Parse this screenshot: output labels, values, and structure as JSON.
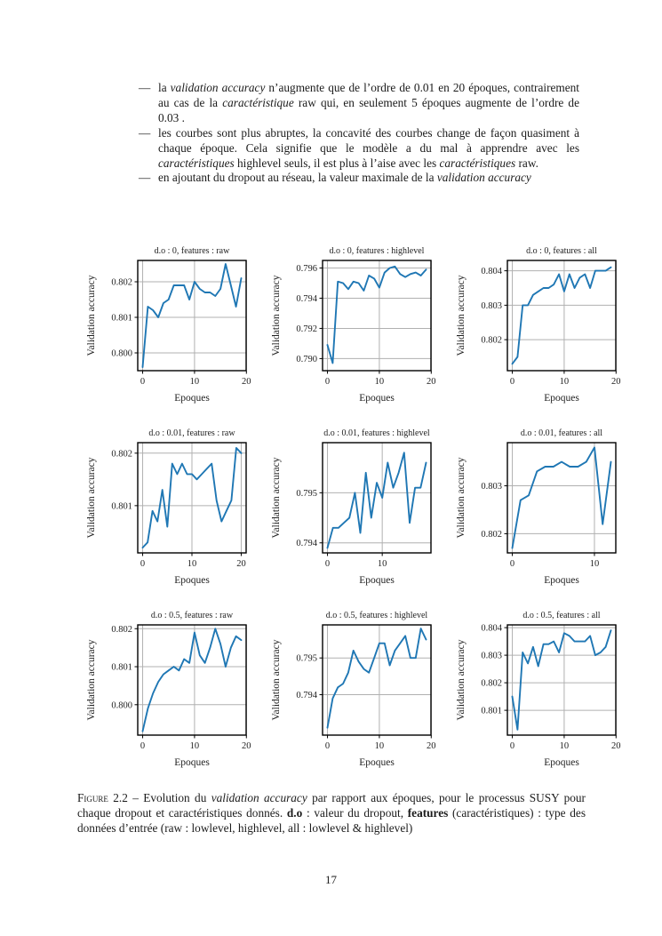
{
  "page_number": "17",
  "list_marker": "—",
  "bullets": [
    {
      "segments": [
        {
          "t": "la ",
          "s": ""
        },
        {
          "t": "validation accuracy",
          "s": "i"
        },
        {
          "t": " n’augmente que de l’ordre de 0.01 en 20 époques, contrairement au cas de la ",
          "s": ""
        },
        {
          "t": "caractéristique",
          "s": "i"
        },
        {
          "t": " raw qui, en seulement 5 époques augmente de l’ordre de 0.03 .",
          "s": ""
        }
      ]
    },
    {
      "segments": [
        {
          "t": "les courbes sont plus abruptes, la concavité des courbes change de façon quasiment à chaque époque. Cela signifie que le modèle a du mal à apprendre avec les ",
          "s": ""
        },
        {
          "t": "caractéristiques",
          "s": "i"
        },
        {
          "t": " highlevel seuls, il est plus à l’aise avec les ",
          "s": ""
        },
        {
          "t": "caractéristiques",
          "s": "i"
        },
        {
          "t": " raw.",
          "s": ""
        }
      ]
    },
    {
      "segments": [
        {
          "t": "en ajoutant du dropout au réseau, la valeur maximale de la ",
          "s": ""
        },
        {
          "t": "validation accuracy",
          "s": "i"
        }
      ]
    }
  ],
  "caption_segments": [
    {
      "t": "Figure",
      "s": "sc"
    },
    {
      "t": " 2.2 – Evolution du ",
      "s": ""
    },
    {
      "t": "validation accuracy",
      "s": "i"
    },
    {
      "t": " par rapport aux époques, pour le processus SUSY pour chaque dropout et caractéristiques donnés. ",
      "s": ""
    },
    {
      "t": "d.o",
      "s": "b"
    },
    {
      "t": " : valeur du dropout, ",
      "s": ""
    },
    {
      "t": "features",
      "s": "b"
    },
    {
      "t": " (caractéristiques) : type des données d’entrée (raw : lowlevel, highlevel, all : lowlevel & highlevel)",
      "s": ""
    }
  ],
  "chart_data": [
    {
      "type": "line",
      "title": "d.o : 0, features : raw",
      "xlabel": "Epoques",
      "ylabel": "Validation accuracy",
      "line_color": "#1f77b4",
      "grid": true,
      "x": [
        0,
        1,
        2,
        3,
        4,
        5,
        6,
        7,
        8,
        9,
        10,
        11,
        12,
        13,
        14,
        15,
        16,
        17,
        18,
        19
      ],
      "values": [
        0.7996,
        0.8013,
        0.8012,
        0.801,
        0.8014,
        0.8015,
        0.8019,
        0.8019,
        0.8019,
        0.8015,
        0.802,
        0.8018,
        0.8017,
        0.8017,
        0.8016,
        0.8018,
        0.8025,
        0.8019,
        0.8013,
        0.8021
      ],
      "xticks": [
        0,
        10,
        20
      ],
      "yticks": [
        0.8,
        0.801,
        0.802
      ],
      "xlim": [
        -0.95,
        19.95
      ],
      "ylim": [
        0.7995,
        0.8026
      ]
    },
    {
      "type": "line",
      "title": "d.o : 0, features : highlevel",
      "xlabel": "Epoques",
      "ylabel": "Validation accuracy",
      "line_color": "#1f77b4",
      "grid": true,
      "x": [
        0,
        1,
        2,
        3,
        4,
        5,
        6,
        7,
        8,
        9,
        10,
        11,
        12,
        13,
        14,
        15,
        16,
        17,
        18,
        19
      ],
      "values": [
        0.7909,
        0.7897,
        0.7951,
        0.795,
        0.7946,
        0.7951,
        0.795,
        0.7945,
        0.7955,
        0.7953,
        0.7947,
        0.7957,
        0.796,
        0.7961,
        0.7956,
        0.7954,
        0.7956,
        0.7957,
        0.7955,
        0.7959
      ],
      "xticks": [
        0,
        10,
        20
      ],
      "yticks": [
        0.79,
        0.792,
        0.794,
        0.796
      ],
      "xlim": [
        -0.95,
        19.95
      ],
      "ylim": [
        0.7892,
        0.7965
      ]
    },
    {
      "type": "line",
      "title": "d.o : 0, features : all",
      "xlabel": "Epoques",
      "ylabel": "Validation accuracy",
      "line_color": "#1f77b4",
      "grid": true,
      "x": [
        0,
        1,
        2,
        3,
        4,
        5,
        6,
        7,
        8,
        9,
        10,
        11,
        12,
        13,
        14,
        15,
        16,
        17,
        18,
        19
      ],
      "values": [
        0.8013,
        0.8015,
        0.803,
        0.803,
        0.8033,
        0.8034,
        0.8035,
        0.8035,
        0.8036,
        0.8039,
        0.8034,
        0.8039,
        0.8035,
        0.8038,
        0.8039,
        0.8035,
        0.804,
        0.804,
        0.804,
        0.8041
      ],
      "xticks": [
        0,
        10,
        20
      ],
      "yticks": [
        0.802,
        0.803,
        0.804
      ],
      "xlim": [
        -0.95,
        19.95
      ],
      "ylim": [
        0.8011,
        0.8043
      ]
    },
    {
      "type": "line",
      "title": "d.o : 0.01, features : raw",
      "xlabel": "Epoques",
      "ylabel": "Validation accuracy",
      "line_color": "#1f77b4",
      "grid": true,
      "x": [
        0,
        1,
        2,
        3,
        4,
        5,
        6,
        7,
        8,
        9,
        10,
        11,
        12,
        13,
        14,
        15,
        16,
        17,
        18,
        19,
        20
      ],
      "values": [
        0.8002,
        0.8003,
        0.8009,
        0.8007,
        0.8013,
        0.8006,
        0.8018,
        0.8016,
        0.8018,
        0.8016,
        0.8016,
        0.8015,
        0.8016,
        0.8017,
        0.8018,
        0.8011,
        0.8007,
        0.8009,
        0.8011,
        0.8021,
        0.802
      ],
      "xticks": [
        0,
        10,
        20
      ],
      "yticks": [
        0.801,
        0.802
      ],
      "xlim": [
        -1,
        21
      ],
      "ylim": [
        0.8001,
        0.8022
      ]
    },
    {
      "type": "line",
      "title": "d.o : 0.01, features : highlevel",
      "xlabel": "Epoques",
      "ylabel": "Validation accuracy",
      "line_color": "#1f77b4",
      "grid": true,
      "x": [
        0,
        1,
        2,
        3,
        4,
        5,
        6,
        7,
        8,
        9,
        10,
        11,
        12,
        13,
        14,
        15,
        16,
        17,
        18
      ],
      "values": [
        0.7939,
        0.7943,
        0.7943,
        0.7944,
        0.7945,
        0.795,
        0.7942,
        0.7954,
        0.7945,
        0.7952,
        0.7949,
        0.7956,
        0.7951,
        0.7954,
        0.7958,
        0.7944,
        0.7951,
        0.7951,
        0.7956
      ],
      "xticks": [
        0,
        10
      ],
      "yticks": [
        0.794,
        0.795
      ],
      "xlim": [
        -0.9,
        18.9
      ],
      "ylim": [
        0.7938,
        0.796
      ]
    },
    {
      "type": "line",
      "title": "d.o : 0.01, features : all",
      "xlabel": "Epoques",
      "ylabel": "Validation accuracy",
      "line_color": "#1f77b4",
      "grid": true,
      "x": [
        0,
        1,
        2,
        3,
        4,
        5,
        6,
        7,
        8,
        9,
        10,
        11,
        12
      ],
      "values": [
        0.8017,
        0.8027,
        0.8028,
        0.8033,
        0.8034,
        0.8034,
        0.8035,
        0.8034,
        0.8034,
        0.8035,
        0.8038,
        0.8022,
        0.8035
      ],
      "xticks": [
        0,
        10
      ],
      "yticks": [
        0.802,
        0.803
      ],
      "xlim": [
        -0.6,
        12.6
      ],
      "ylim": [
        0.8016,
        0.8039
      ]
    },
    {
      "type": "line",
      "title": "d.o : 0.5, features : raw",
      "xlabel": "Epoques",
      "ylabel": "Validation accuracy",
      "line_color": "#1f77b4",
      "grid": true,
      "x": [
        0,
        1,
        2,
        3,
        4,
        5,
        6,
        7,
        8,
        9,
        10,
        11,
        12,
        13,
        14,
        15,
        16,
        17,
        18,
        19
      ],
      "values": [
        0.7993,
        0.7999,
        0.8003,
        0.8006,
        0.8008,
        0.8009,
        0.801,
        0.8009,
        0.8012,
        0.8011,
        0.8019,
        0.8013,
        0.8011,
        0.8015,
        0.802,
        0.8016,
        0.801,
        0.8015,
        0.8018,
        0.8017
      ],
      "xticks": [
        0,
        10,
        20
      ],
      "yticks": [
        0.8,
        0.801,
        0.802
      ],
      "xlim": [
        -0.95,
        19.95
      ],
      "ylim": [
        0.7992,
        0.8021
      ]
    },
    {
      "type": "line",
      "title": "d.o : 0.5, features : highlevel",
      "xlabel": "Epoques",
      "ylabel": "Validation accuracy",
      "line_color": "#1f77b4",
      "grid": true,
      "x": [
        0,
        1,
        2,
        3,
        4,
        5,
        6,
        7,
        8,
        9,
        10,
        11,
        12,
        13,
        14,
        15,
        16,
        17,
        18,
        19
      ],
      "values": [
        0.7931,
        0.7939,
        0.7942,
        0.7943,
        0.7946,
        0.7952,
        0.7949,
        0.7947,
        0.7946,
        0.795,
        0.7954,
        0.7954,
        0.7948,
        0.7952,
        0.7954,
        0.7956,
        0.795,
        0.795,
        0.7958,
        0.7955
      ],
      "xticks": [
        0,
        10,
        20
      ],
      "yticks": [
        0.794,
        0.795
      ],
      "xlim": [
        -0.95,
        19.95
      ],
      "ylim": [
        0.7929,
        0.7959
      ]
    },
    {
      "type": "line",
      "title": "d.o : 0.5, features : all",
      "xlabel": "Epoques",
      "ylabel": "Validation accuracy",
      "line_color": "#1f77b4",
      "grid": true,
      "x": [
        0,
        1,
        2,
        3,
        4,
        5,
        6,
        7,
        8,
        9,
        10,
        11,
        12,
        13,
        14,
        15,
        16,
        17,
        18,
        19
      ],
      "values": [
        0.8015,
        0.8003,
        0.8031,
        0.8027,
        0.8033,
        0.8026,
        0.8034,
        0.8034,
        0.8035,
        0.8031,
        0.8038,
        0.8037,
        0.8035,
        0.8035,
        0.8035,
        0.8037,
        0.803,
        0.8031,
        0.8033,
        0.8039
      ],
      "xticks": [
        0,
        10,
        20
      ],
      "yticks": [
        0.801,
        0.802,
        0.803,
        0.804
      ],
      "xlim": [
        -0.95,
        19.95
      ],
      "ylim": [
        0.8001,
        0.8041
      ]
    }
  ]
}
